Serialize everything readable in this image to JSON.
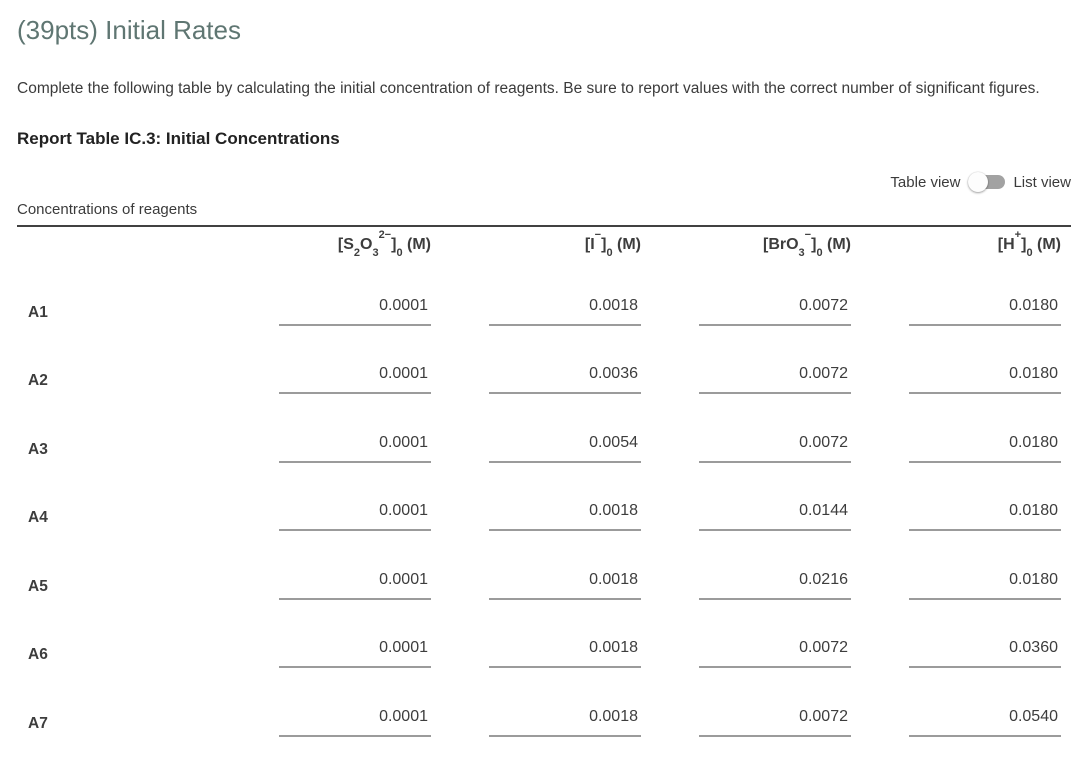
{
  "page": {
    "title": "(39pts) Initial Rates",
    "instructions": "Complete the following table by calculating the initial concentration of reagents. Be sure to report values with the correct number of significant figures.",
    "report_table_heading": "Report Table IC.3: Initial Concentrations"
  },
  "view_toggle": {
    "left_label": "Table view",
    "right_label": "List view",
    "selected": "Table view"
  },
  "table": {
    "caption": "Concentrations of reagents",
    "headers": [
      {
        "text": "[S2O3^2-]0 (M)",
        "segments": [
          [
            "t",
            "[S"
          ],
          [
            "sub",
            "2"
          ],
          [
            "t",
            "O"
          ],
          [
            "sub",
            "3"
          ],
          [
            "sup",
            "2−"
          ],
          [
            "t",
            "]"
          ],
          [
            "sub",
            "0"
          ],
          [
            "t",
            " (M)"
          ]
        ]
      },
      {
        "text": "[I^-]0 (M)",
        "segments": [
          [
            "t",
            "[I"
          ],
          [
            "sup",
            "−"
          ],
          [
            "t",
            "]"
          ],
          [
            "sub",
            "0"
          ],
          [
            "t",
            " (M)"
          ]
        ]
      },
      {
        "text": "[BrO3^-]0 (M)",
        "segments": [
          [
            "t",
            "[BrO"
          ],
          [
            "sub",
            "3"
          ],
          [
            "sup",
            "−"
          ],
          [
            "t",
            "]"
          ],
          [
            "sub",
            "0"
          ],
          [
            "t",
            " (M)"
          ]
        ]
      },
      {
        "text": "[H^+]0 (M)",
        "segments": [
          [
            "t",
            "[H"
          ],
          [
            "sup",
            "+"
          ],
          [
            "t",
            "]"
          ],
          [
            "sub",
            "0"
          ],
          [
            "t",
            " (M)"
          ]
        ]
      }
    ],
    "rows": [
      {
        "label": "A1",
        "values": [
          "0.0001",
          "0.0018",
          "0.0072",
          "0.0180"
        ]
      },
      {
        "label": "A2",
        "values": [
          "0.0001",
          "0.0036",
          "0.0072",
          "0.0180"
        ]
      },
      {
        "label": "A3",
        "values": [
          "0.0001",
          "0.0054",
          "0.0072",
          "0.0180"
        ]
      },
      {
        "label": "A4",
        "values": [
          "0.0001",
          "0.0018",
          "0.0144",
          "0.0180"
        ]
      },
      {
        "label": "A5",
        "values": [
          "0.0001",
          "0.0018",
          "0.0216",
          "0.0180"
        ]
      },
      {
        "label": "A6",
        "values": [
          "0.0001",
          "0.0018",
          "0.0072",
          "0.0360"
        ]
      },
      {
        "label": "A7",
        "values": [
          "0.0001",
          "0.0018",
          "0.0072",
          "0.0540"
        ]
      }
    ]
  },
  "colors": {
    "title": "#5f7672",
    "body_text": "#3b3b3b",
    "table_text": "#3d3d3d",
    "header_rule": "#414141",
    "input_underline": "#9b9b9b",
    "toggle_track": "#a2a2a2",
    "toggle_thumb": "#fdfdfd"
  }
}
